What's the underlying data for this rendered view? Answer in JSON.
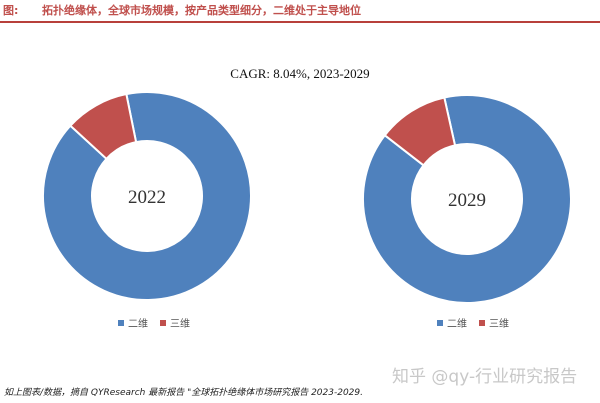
{
  "header": {
    "figure_label": "图:",
    "title": "拓扑绝缘体，全球市场规模，按产品类型细分，二维处于主导地位"
  },
  "subtitle": "CAGR: 8.04%, 2023-2029",
  "colors": {
    "series_2d": "#4f81bd",
    "series_3d": "#c0504d",
    "header_accent": "#c0504d"
  },
  "chart_data": [
    {
      "type": "pie",
      "title": "2022",
      "categories": [
        "二维",
        "三维"
      ],
      "values": [
        90,
        10
      ],
      "legend": "bottom"
    },
    {
      "type": "pie",
      "title": "2029",
      "categories": [
        "二维",
        "三维"
      ],
      "values": [
        89,
        11
      ],
      "legend": "bottom"
    }
  ],
  "source": "如上图表/数据，摘自 QYResearch 最新报告 \"全球拓扑绝缘体市场研究报告 2023-2029.",
  "watermark": "知乎 @qy-行业研究报告"
}
